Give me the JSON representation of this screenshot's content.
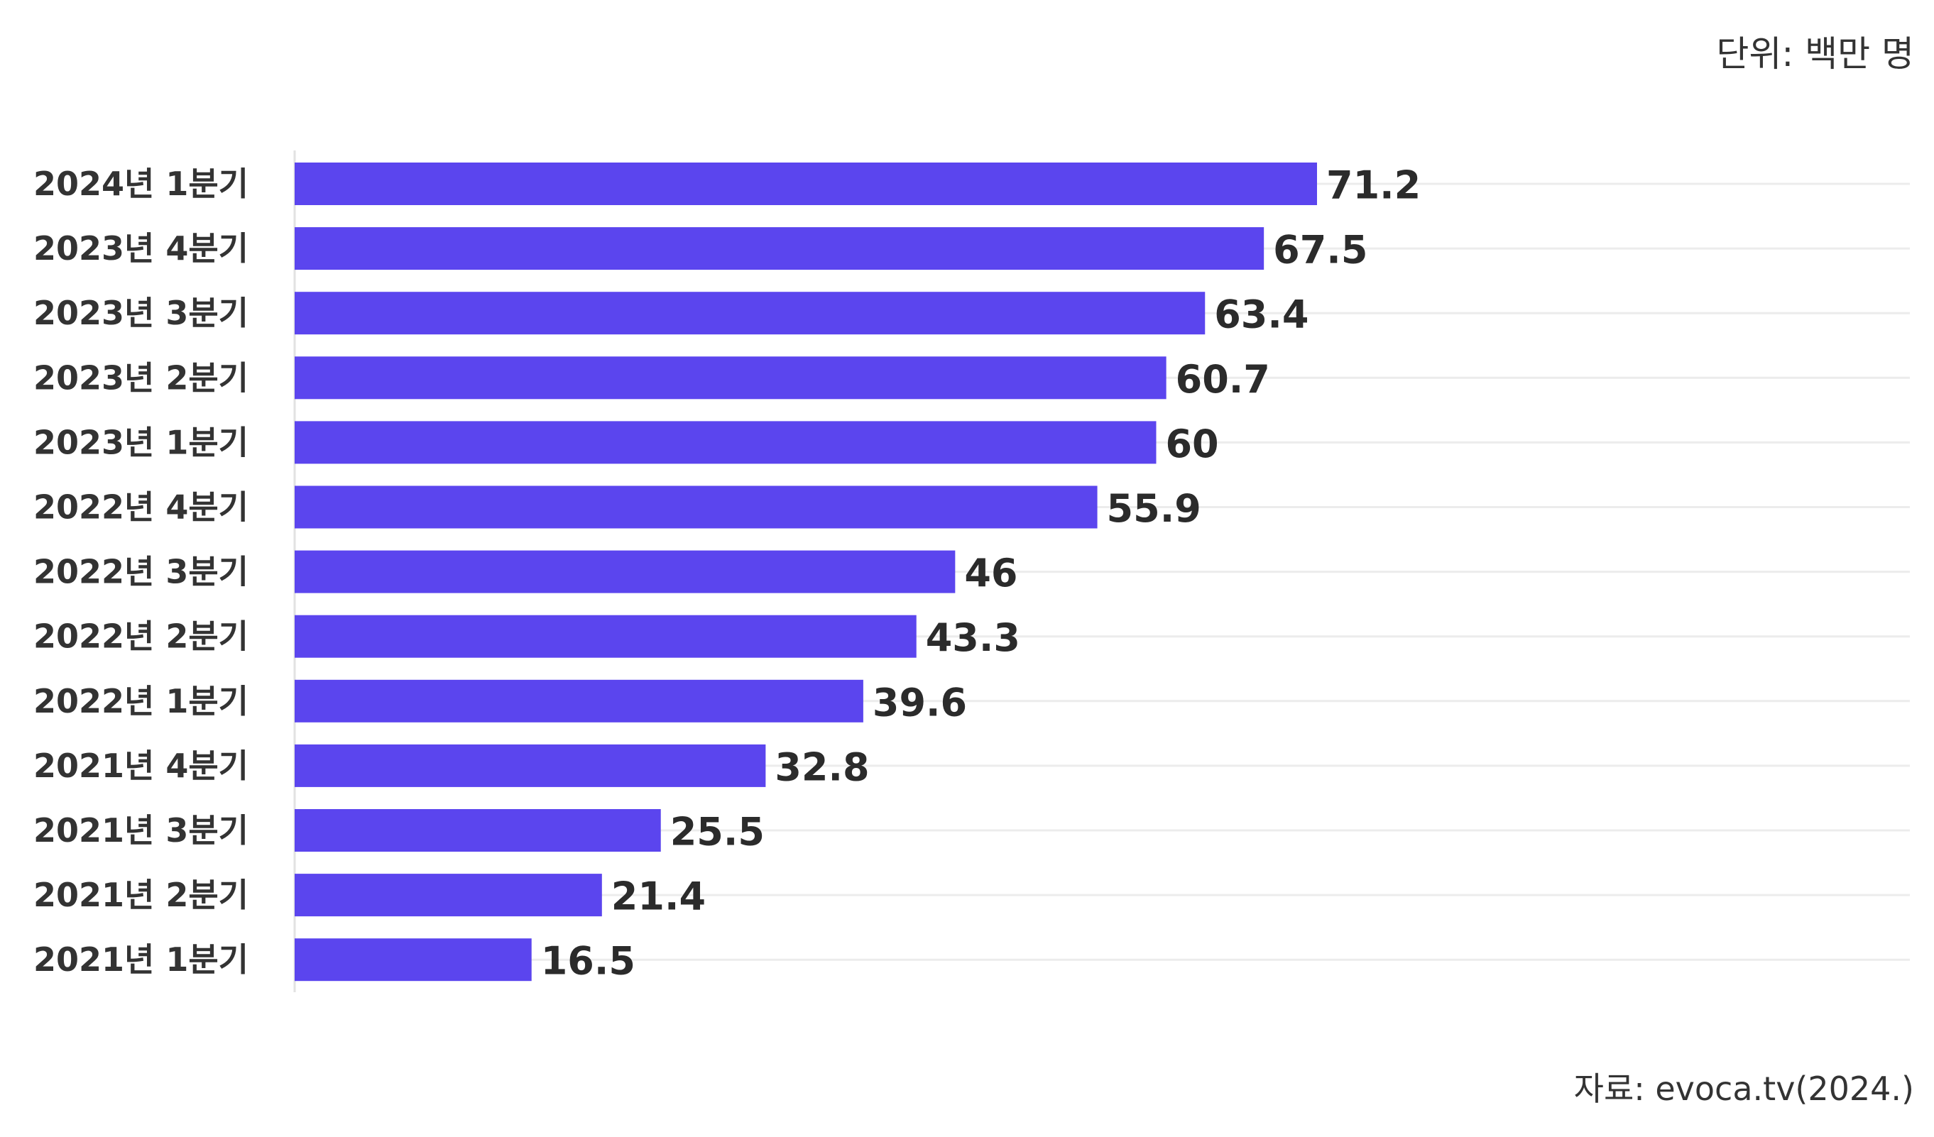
{
  "unit_text": "단위: 백만 명",
  "source_text": "자료: evoca.tv(2024.)",
  "colors": {
    "bar": "#5b45ee",
    "gridline": "#ececec",
    "axis": "#e2e2e2",
    "text": "#333333"
  },
  "chart_data": {
    "type": "bar",
    "orientation": "horizontal",
    "categories": [
      "2024년 1분기",
      "2023년 4분기",
      "2023년 3분기",
      "2023년 2분기",
      "2023년 1분기",
      "2022년 4분기",
      "2022년 3분기",
      "2022년 2분기",
      "2022년 1분기",
      "2021년 4분기",
      "2021년 3분기",
      "2021년 2분기",
      "2021년 1분기"
    ],
    "values": [
      71.2,
      67.5,
      63.4,
      60.7,
      60,
      55.9,
      46,
      43.3,
      39.6,
      32.8,
      25.5,
      21.4,
      16.5
    ],
    "data_labels": [
      "71.2",
      "67.5",
      "63.4",
      "60.7",
      "60",
      "55.9",
      "46",
      "43.3",
      "39.6",
      "32.8",
      "25.5",
      "21.4",
      "16.5"
    ],
    "xlim": [
      0,
      80
    ],
    "grid": true,
    "legend": "none"
  }
}
